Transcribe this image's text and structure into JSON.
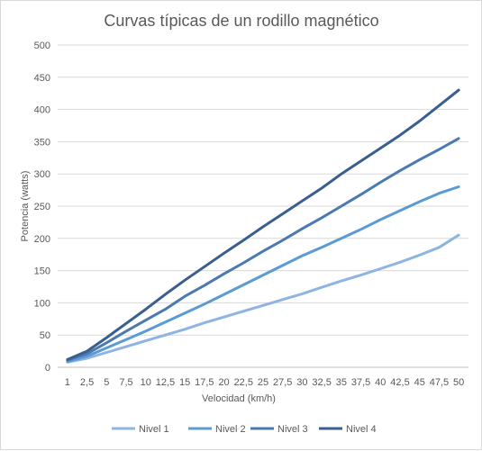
{
  "chart_data": {
    "type": "line",
    "title": "Curvas típicas de un rodillo magnético",
    "xlabel": "Velocidad (km/h)",
    "ylabel": "Potencia (watts)",
    "ylim": [
      0,
      500
    ],
    "yticks": [
      "0",
      "50",
      "100",
      "150",
      "200",
      "250",
      "300",
      "350",
      "400",
      "450",
      "500"
    ],
    "grid": "horizontal",
    "legend_position": "bottom",
    "categories": [
      "1",
      "2,5",
      "5",
      "7,5",
      "10",
      "12,5",
      "15",
      "17,5",
      "20",
      "22,5",
      "25",
      "27,5",
      "30",
      "32,5",
      "35",
      "37,5",
      "40",
      "42,5",
      "45",
      "47,5",
      "50"
    ],
    "series": [
      {
        "name": "Nivel 1",
        "color": "#8eb4e3",
        "values": [
          8,
          14,
          23,
          32,
          41,
          50,
          59,
          69,
          78,
          87,
          96,
          105,
          114,
          124,
          134,
          143,
          153,
          163,
          174,
          186,
          205
        ]
      },
      {
        "name": "Nivel 2",
        "color": "#5b9bd5",
        "values": [
          9,
          17,
          30,
          43,
          56,
          70,
          84,
          98,
          113,
          128,
          143,
          158,
          173,
          186,
          200,
          214,
          229,
          243,
          257,
          270,
          280
        ]
      },
      {
        "name": "Nivel 3",
        "color": "#4a7ab0",
        "values": [
          11,
          21,
          38,
          56,
          73,
          90,
          110,
          127,
          145,
          162,
          180,
          197,
          215,
          232,
          250,
          268,
          287,
          305,
          322,
          338,
          355
        ]
      },
      {
        "name": "Nivel 4",
        "color": "#3a5f8f",
        "values": [
          12,
          25,
          46,
          68,
          90,
          113,
          135,
          156,
          177,
          197,
          218,
          238,
          258,
          278,
          300,
          320,
          340,
          360,
          382,
          406,
          430
        ]
      }
    ]
  }
}
